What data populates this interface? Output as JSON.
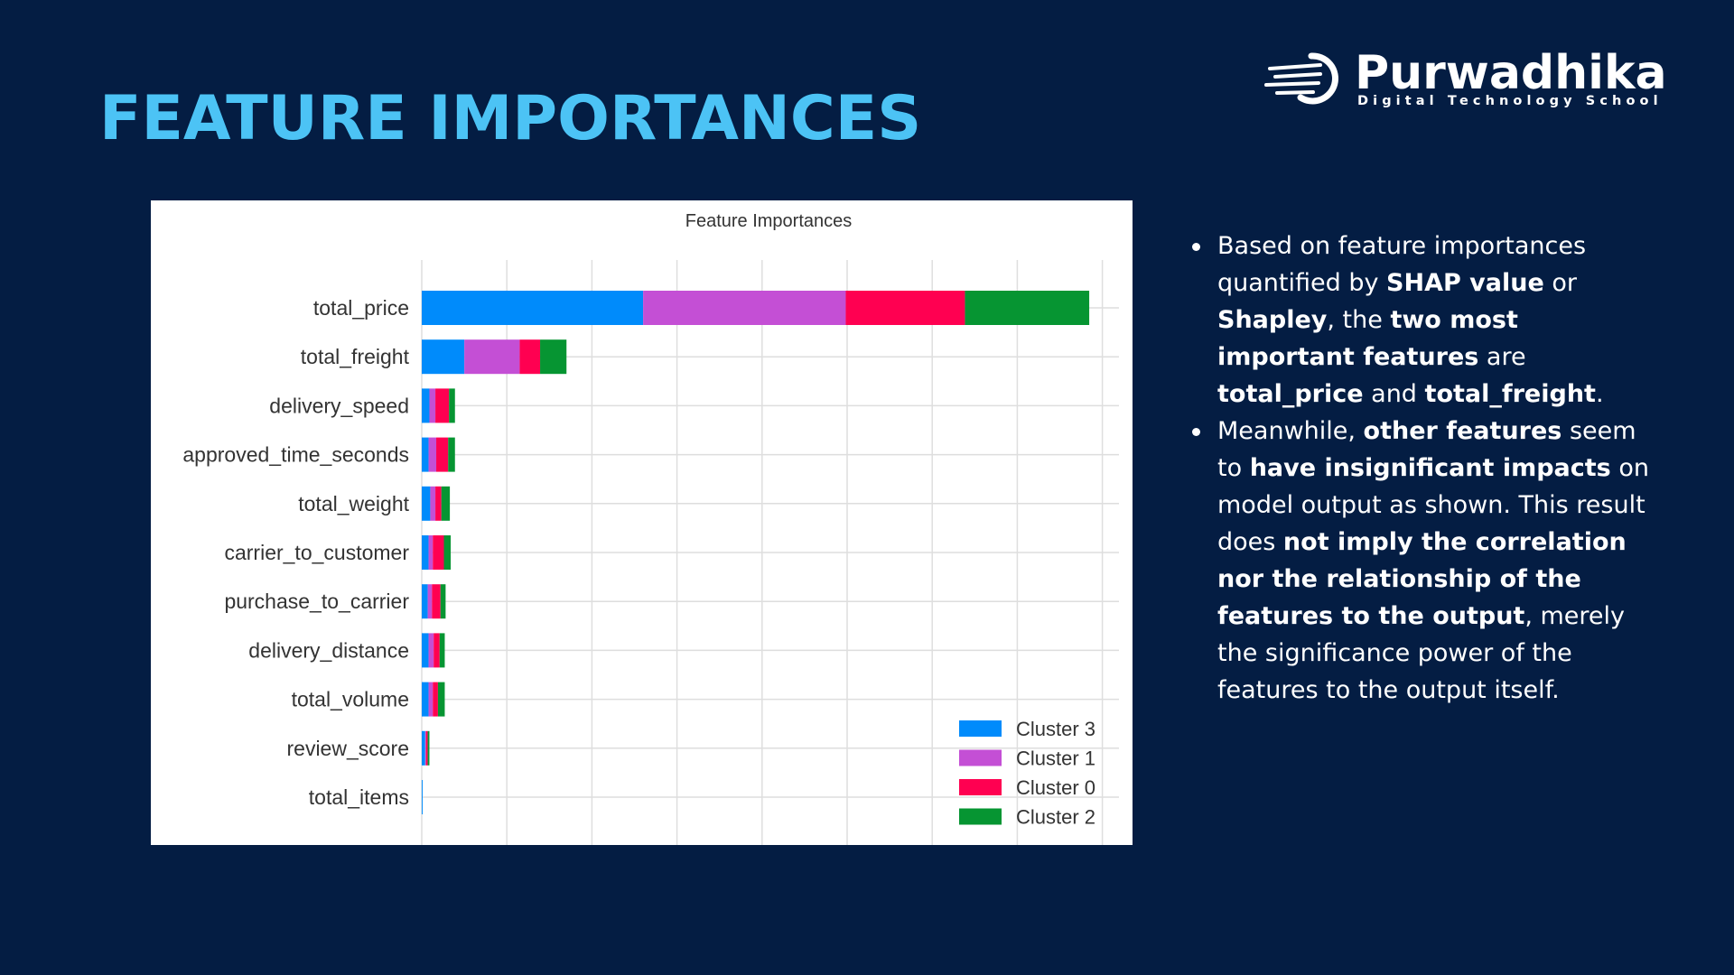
{
  "slide": {
    "title": "FEATURE IMPORTANCES",
    "background_color": "#041d43",
    "title_color": "#4cc3f5"
  },
  "logo": {
    "name": "Purwadhika",
    "tagline": "Digital Technology School"
  },
  "chart_data": {
    "type": "bar",
    "orientation": "horizontal",
    "stacked": true,
    "title": "Feature Importances",
    "xlabel": "",
    "ylabel": "",
    "grid": true,
    "legend_position": "lower-right",
    "categories": [
      "total_price",
      "total_freight",
      "delivery_speed",
      "approved_time_seconds",
      "total_weight",
      "carrier_to_customer",
      "purchase_to_carrier",
      "delivery_distance",
      "total_volume",
      "review_score",
      "total_items"
    ],
    "series": [
      {
        "name": "Cluster 3",
        "color": "#008bfb",
        "values": [
          2.6,
          0.5,
          0.09,
          0.08,
          0.1,
          0.08,
          0.07,
          0.08,
          0.08,
          0.04,
          0.01
        ]
      },
      {
        "name": "Cluster 1",
        "color": "#c44fd5",
        "values": [
          2.38,
          0.65,
          0.07,
          0.09,
          0.06,
          0.05,
          0.05,
          0.06,
          0.05,
          0.01,
          0.0
        ]
      },
      {
        "name": "Cluster 0",
        "color": "#ff0051",
        "values": [
          1.4,
          0.24,
          0.16,
          0.14,
          0.07,
          0.13,
          0.1,
          0.07,
          0.06,
          0.02,
          0.0
        ]
      },
      {
        "name": "Cluster 2",
        "color": "#069532",
        "values": [
          1.46,
          0.31,
          0.07,
          0.08,
          0.1,
          0.08,
          0.06,
          0.06,
          0.08,
          0.02,
          0.0
        ]
      }
    ],
    "xlim": [
      0,
      8.2
    ]
  },
  "bullets": [
    [
      {
        "text": "Based on feature importances quantified by "
      },
      {
        "text": "SHAP value",
        "bold": true
      },
      {
        "text": " or "
      },
      {
        "text": "Shapley",
        "bold": true
      },
      {
        "text": ", the "
      },
      {
        "text": "two most important features",
        "bold": true
      },
      {
        "text": " are "
      },
      {
        "text": "total_price",
        "bold": true
      },
      {
        "text": " and "
      },
      {
        "text": "total_freight",
        "bold": true
      },
      {
        "text": "."
      }
    ],
    [
      {
        "text": "Meanwhile, "
      },
      {
        "text": "other features",
        "bold": true
      },
      {
        "text": " seem to "
      },
      {
        "text": "have insignificant impacts",
        "bold": true
      },
      {
        "text": " on model output as shown. This result does "
      },
      {
        "text": "not imply the correlation nor the relationship of the features to the output",
        "bold": true
      },
      {
        "text": ", merely the significance power of the features to the output itself."
      }
    ]
  ]
}
